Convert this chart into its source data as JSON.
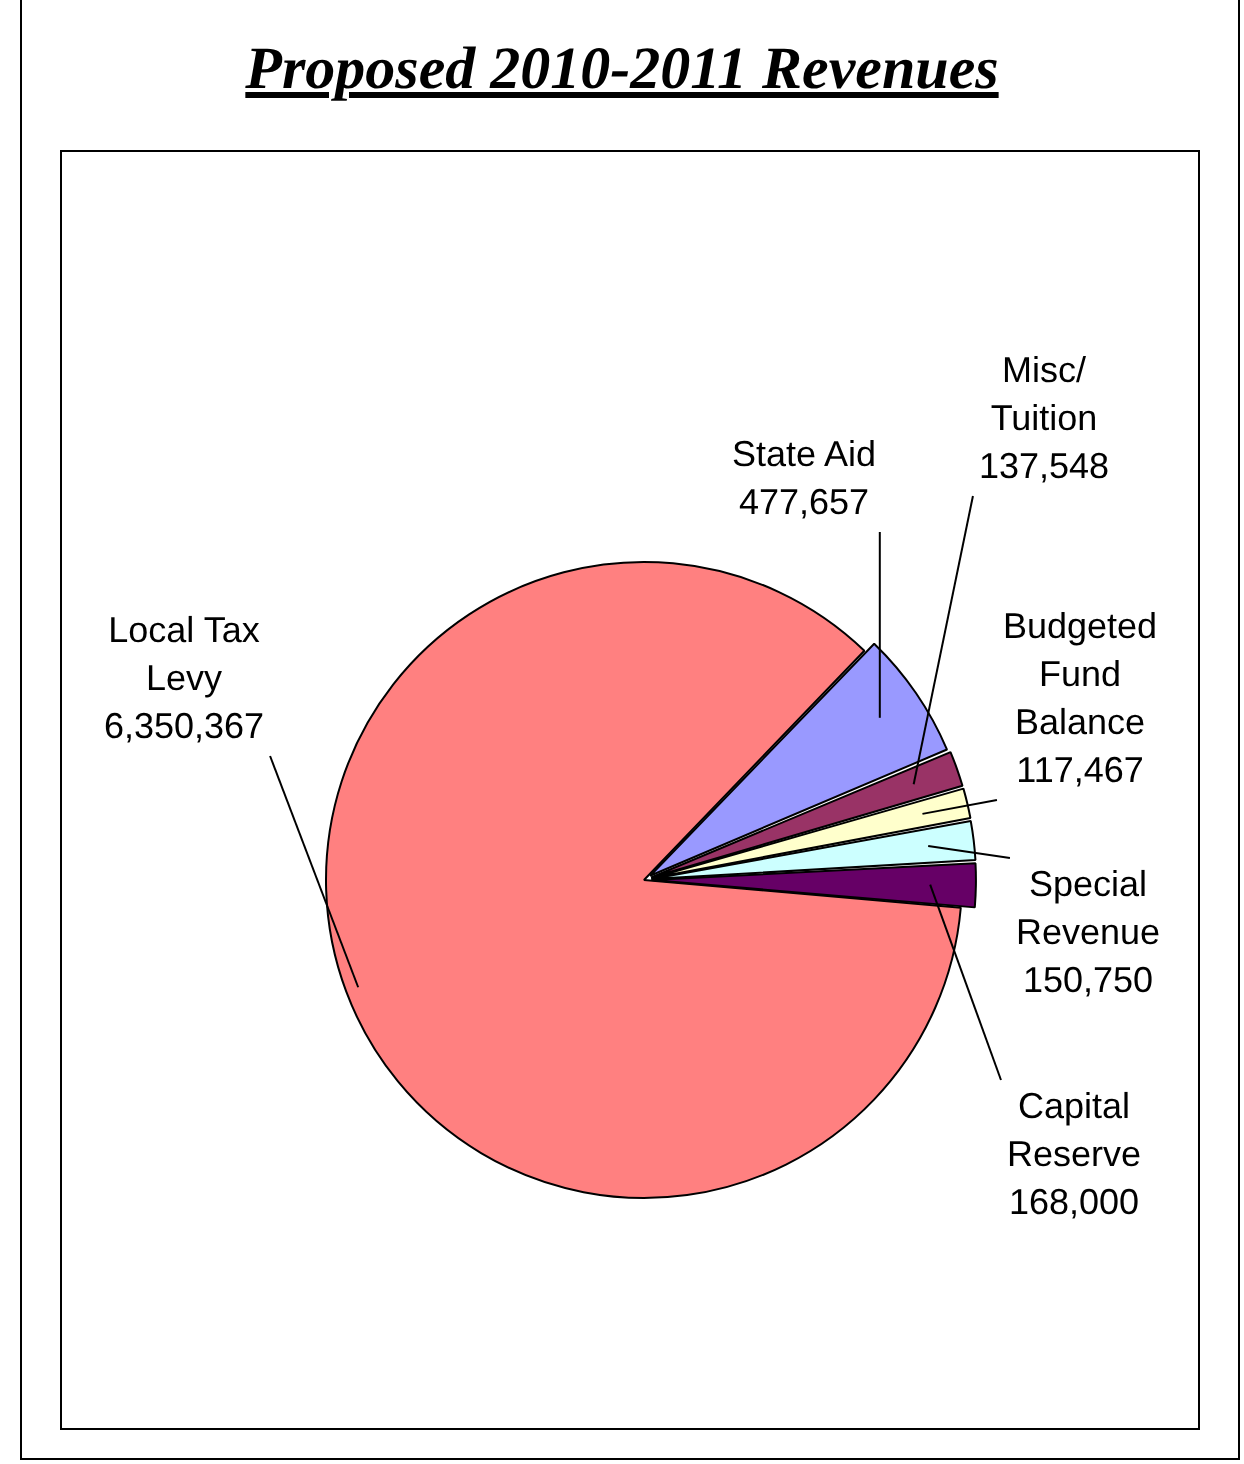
{
  "chart_data": {
    "type": "pie",
    "title": "Proposed 2010-2011 Revenues",
    "categories": [
      "Local Tax Levy",
      "State Aid",
      "Misc/Tuition",
      "Budgeted Fund Balance",
      "Special Revenue",
      "Capital Reserve"
    ],
    "values": [
      6350367,
      477657,
      137548,
      117467,
      150750,
      168000
    ],
    "colors": [
      "#ff8080",
      "#9999ff",
      "#993366",
      "#ffffcc",
      "#ccffff",
      "#660066"
    ],
    "value_labels": [
      "6,350,367",
      "477,657",
      "137,548",
      "117,467",
      "150,750",
      "168,000"
    ],
    "legend": false
  }
}
